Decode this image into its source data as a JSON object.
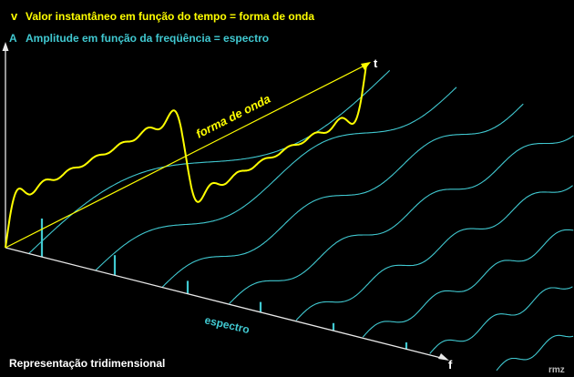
{
  "legend": {
    "v_symbol": "v",
    "v_text": "Valor instantâneo em função do tempo = forma de onda",
    "a_symbol": "A",
    "a_text": "Amplitude em função da freqüência = espectro"
  },
  "axes": {
    "time_label": "t",
    "freq_label": "f"
  },
  "annotations": {
    "waveform_label": "forma de onda",
    "spectrum_label": "espectro"
  },
  "caption": "Representação tridimensional",
  "signature": "rmz",
  "colors": {
    "background": "#000000",
    "yellow": "#ffff00",
    "cyan": "#40c8d0",
    "white": "#ffffff",
    "axis_white": "#e8e8e8",
    "signature": "#bbbbbb"
  }
}
